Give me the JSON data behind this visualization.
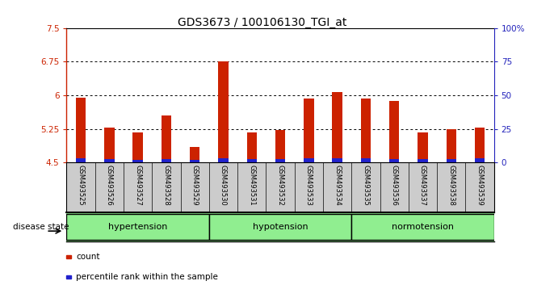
{
  "title": "GDS3673 / 100106130_TGI_at",
  "samples": [
    "GSM493525",
    "GSM493526",
    "GSM493527",
    "GSM493528",
    "GSM493529",
    "GSM493530",
    "GSM493531",
    "GSM493532",
    "GSM493533",
    "GSM493534",
    "GSM493535",
    "GSM493536",
    "GSM493537",
    "GSM493538",
    "GSM493539"
  ],
  "red_values": [
    5.95,
    5.28,
    5.17,
    5.55,
    4.85,
    6.75,
    5.17,
    5.22,
    5.92,
    6.07,
    5.93,
    5.87,
    5.17,
    5.25,
    5.28
  ],
  "blue_values": [
    0.1,
    0.08,
    0.06,
    0.07,
    0.05,
    0.1,
    0.07,
    0.08,
    0.1,
    0.1,
    0.09,
    0.08,
    0.08,
    0.08,
    0.09
  ],
  "ymin": 4.5,
  "ymax": 7.5,
  "yticks": [
    4.5,
    5.25,
    6.0,
    6.75,
    7.5
  ],
  "ytick_labels": [
    "4.5",
    "5.25",
    "6",
    "6.75",
    "7.5"
  ],
  "right_yticks": [
    0,
    25,
    50,
    75,
    100
  ],
  "right_ytick_labels": [
    "0",
    "25",
    "50",
    "75",
    "100%"
  ],
  "groups": [
    {
      "label": "hypertension",
      "start": 0,
      "end": 5
    },
    {
      "label": "hypotension",
      "start": 5,
      "end": 10
    },
    {
      "label": "normotension",
      "start": 10,
      "end": 15
    }
  ],
  "bar_color_red": "#CC2200",
  "bar_color_blue": "#2222CC",
  "axis_left_color": "#CC2200",
  "axis_right_color": "#2222BB",
  "bg_color": "#FFFFFF",
  "plot_bg": "#FFFFFF",
  "disease_state_label": "disease state",
  "legend_count": "count",
  "legend_percentile": "percentile rank within the sample",
  "label_bg": "#CCCCCC",
  "group_bg": "#90EE90"
}
